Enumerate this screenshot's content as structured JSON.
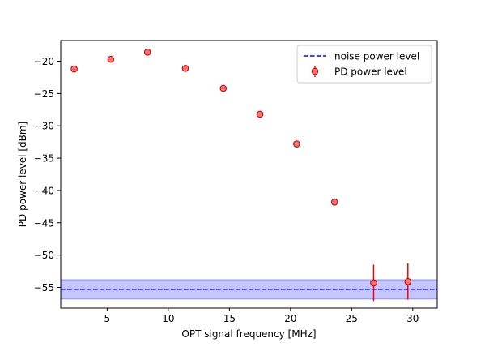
{
  "chart_data": {
    "type": "scatter",
    "title": "",
    "xlabel": "OPT signal frequency [MHz]",
    "ylabel": "PD power level [dBm]",
    "xlim": [
      1.2,
      32.0
    ],
    "ylim": [
      -58.2,
      -16.8
    ],
    "xticks": [
      5,
      10,
      15,
      20,
      25,
      30
    ],
    "yticks": [
      -20,
      -25,
      -30,
      -35,
      -40,
      -45,
      -50,
      -55
    ],
    "xtick_labels": [
      "5",
      "10",
      "15",
      "20",
      "25",
      "30"
    ],
    "ytick_labels": [
      "−20",
      "−25",
      "−30",
      "−35",
      "−40",
      "−45",
      "−50",
      "−55"
    ],
    "grid": false,
    "legend_position": "top-right",
    "series": [
      {
        "name": "PD power level",
        "kind": "errorbar",
        "color": "#ff0000",
        "marker_fill": "#ff6e6e",
        "x": [
          2.3,
          5.3,
          8.3,
          11.4,
          14.5,
          17.5,
          20.5,
          23.6,
          26.8,
          29.6
        ],
        "y": [
          -21.2,
          -19.7,
          -18.6,
          -21.1,
          -24.2,
          -28.2,
          -32.8,
          -41.8,
          -54.3,
          -54.1
        ],
        "yerr": [
          0,
          0,
          0,
          0,
          0,
          0,
          0,
          0,
          2.8,
          2.8
        ]
      },
      {
        "name": "noise power level",
        "kind": "hline",
        "color": "#0000ff",
        "y": -55.3,
        "band": [
          -56.8,
          -53.8
        ],
        "band_color": "#8080ff"
      }
    ],
    "legend": [
      "noise power level",
      "PD power level"
    ]
  }
}
